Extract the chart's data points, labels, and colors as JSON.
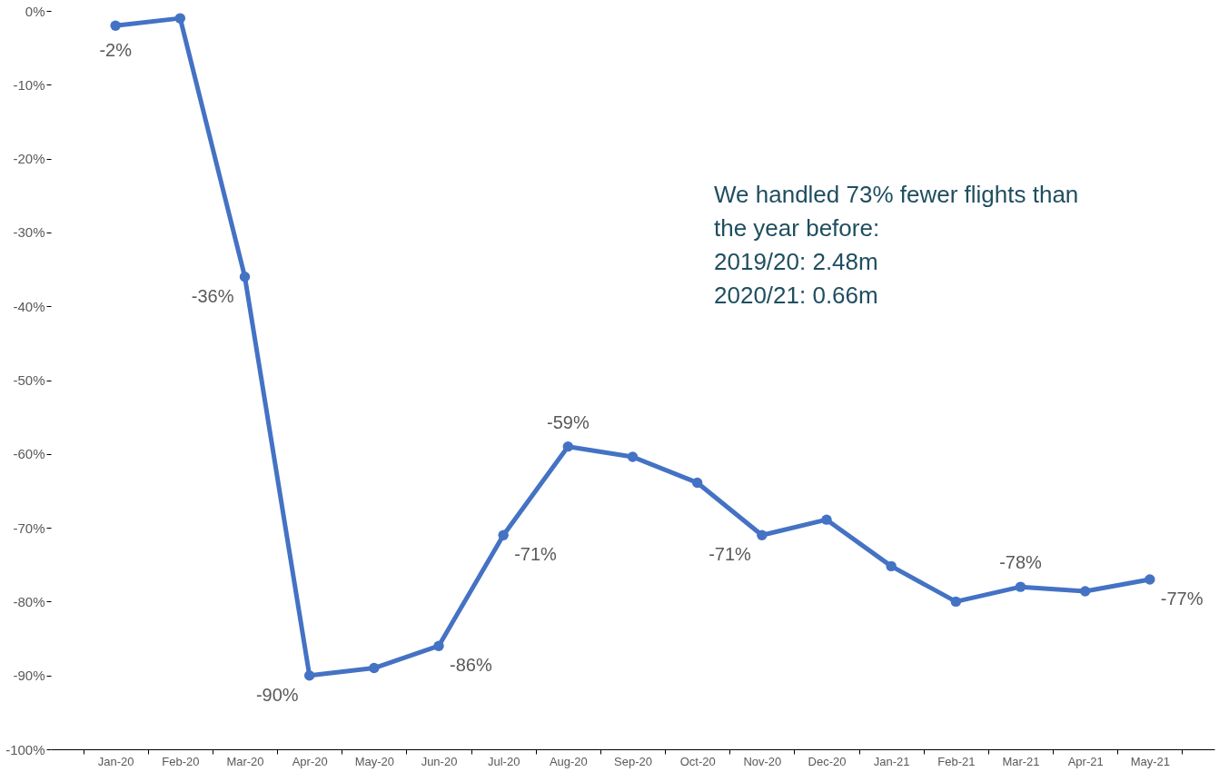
{
  "chart_data": {
    "type": "line",
    "categories": [
      "Jan-20",
      "Feb-20",
      "Mar-20",
      "Apr-20",
      "May-20",
      "Jun-20",
      "Jul-20",
      "Aug-20",
      "Sep-20",
      "Oct-20",
      "Nov-20",
      "Dec-20",
      "Jan-21",
      "Feb-21",
      "Mar-21",
      "Apr-21",
      "May-21"
    ],
    "series": [
      {
        "color": "#4472c4",
        "values": [
          -2,
          -1,
          -36,
          -90,
          -89,
          -86,
          -71,
          -59,
          -60.4,
          -63.9,
          -71,
          -68.9,
          -75.2,
          -80,
          -78,
          -78.6,
          -77
        ],
        "value_labels": [
          "-2%",
          null,
          "-36%",
          "-90%",
          null,
          "-86%",
          "-71%",
          "-59%",
          null,
          null,
          "-71%",
          null,
          null,
          null,
          "-78%",
          null,
          "-77%"
        ]
      }
    ],
    "ylim": [
      -100,
      0
    ],
    "yticks": [
      {
        "value": 0,
        "label": "0%"
      },
      {
        "value": -10,
        "label": "-10%"
      },
      {
        "value": -20,
        "label": "-20%"
      },
      {
        "value": -30,
        "label": "-30%"
      },
      {
        "value": -40,
        "label": "-40%"
      },
      {
        "value": -50,
        "label": "-50%"
      },
      {
        "value": -60,
        "label": "-60%"
      },
      {
        "value": -70,
        "label": "-70%"
      },
      {
        "value": -80,
        "label": "-80%"
      },
      {
        "value": -90,
        "label": "-90%"
      },
      {
        "value": -100,
        "label": "-100%"
      }
    ],
    "marker": "circle",
    "line_style": "solid",
    "grid": false,
    "annotations": [
      "We handled 73% fewer  flights than\nthe year before:\n\n2019/20: 2.48m\n2020/21: 0.66m"
    ]
  }
}
